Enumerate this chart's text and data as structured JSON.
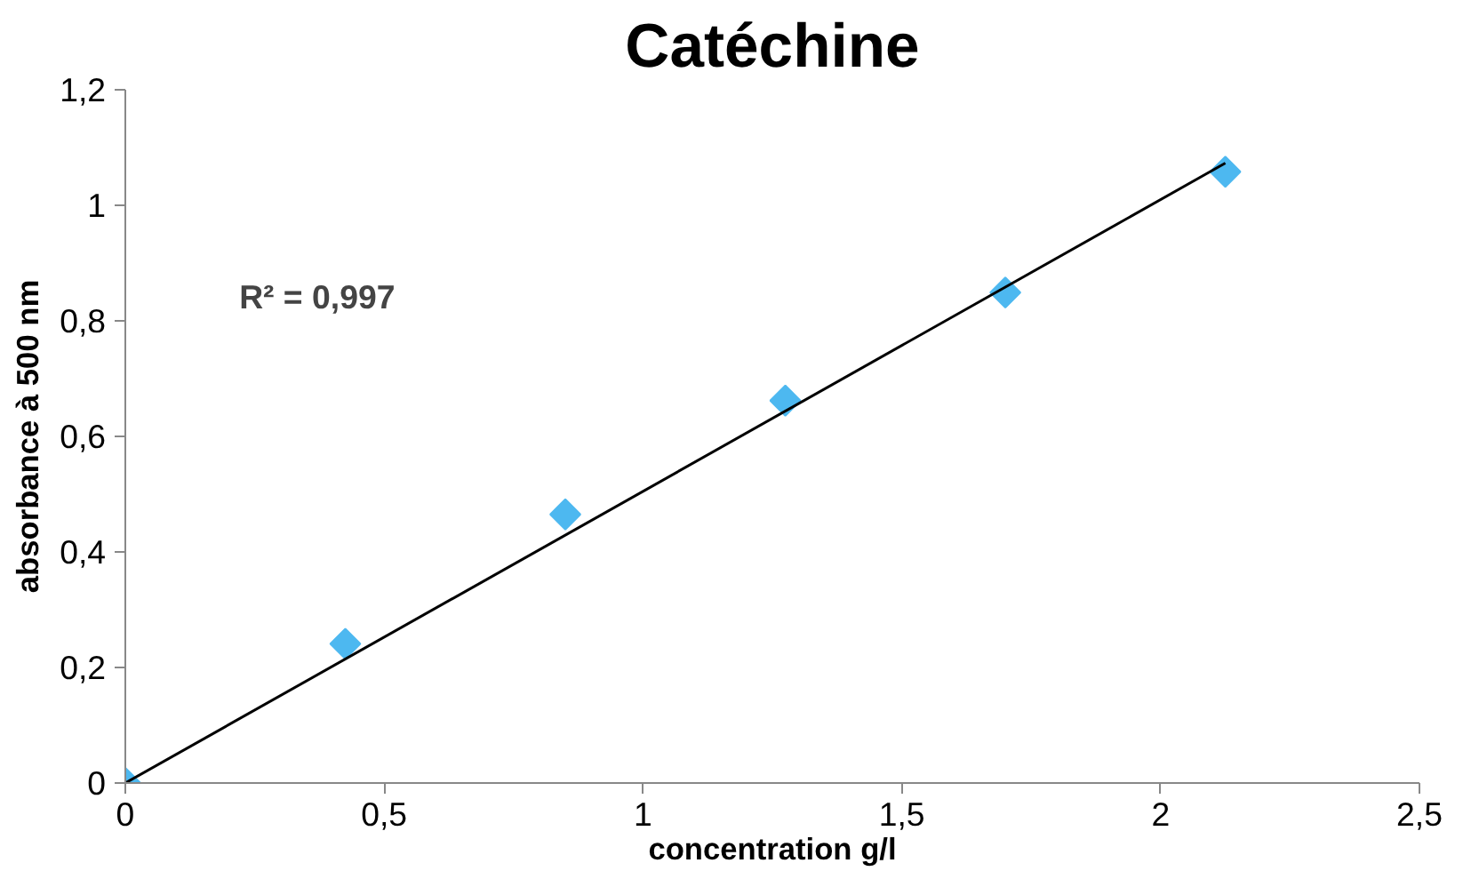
{
  "chart_data": {
    "type": "scatter",
    "title": "Catéchine",
    "xlabel": "concentration g/l",
    "ylabel": "absorbance à 500 nm",
    "x": [
      0,
      0.425,
      0.85,
      1.275,
      1.7,
      2.125
    ],
    "series": [
      {
        "color": "#4db8f0",
        "values": [
          0,
          0.241,
          0.465,
          0.662,
          0.849,
          1.058
        ],
        "marker": "diamond"
      },
      {
        "type": "line",
        "color": "#000000",
        "x": [
          0,
          2.125
        ],
        "values": [
          0,
          1.073
        ]
      }
    ],
    "annotations": [
      "R² = 0,997"
    ],
    "xlim": [
      0,
      2.5
    ],
    "ylim": [
      0,
      1.2
    ],
    "xticks": [
      0,
      {
        "value": 0.5,
        "label": "0,5"
      },
      1,
      {
        "value": 1.5,
        "label": "1,5"
      },
      2,
      {
        "value": 2.5,
        "label": "2,5"
      }
    ],
    "yticks": [
      0,
      {
        "value": 0.2,
        "label": "0,2"
      },
      {
        "value": 0.4,
        "label": "0,4"
      },
      {
        "value": 0.6,
        "label": "0,6"
      },
      {
        "value": 0.8,
        "label": "0,8"
      },
      1,
      {
        "value": 1.2,
        "label": "1,2"
      }
    ],
    "grid": false
  }
}
